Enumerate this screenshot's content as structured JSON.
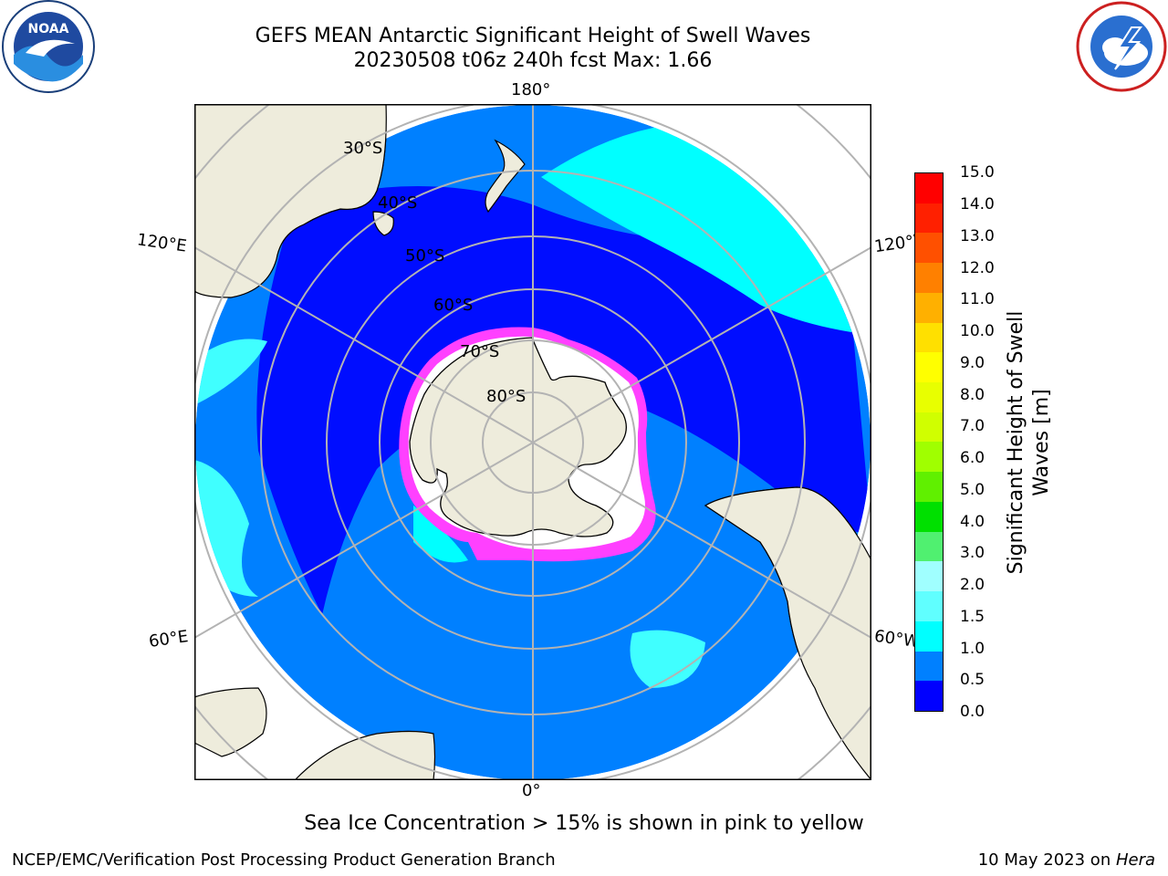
{
  "header": {
    "title_line1": "GEFS MEAN Antarctic Significant Height of Swell Waves",
    "title_line2": "20230508 t06z 240h fcst   Max: 1.66"
  },
  "logos": {
    "left": {
      "icon": "noaa-logo-icon",
      "text": "NOAA",
      "ring_text": "NATIONAL OCEANIC AND ATMOSPHERIC ADMINISTRATION · U.S. DEPARTMENT OF COMMERCE"
    },
    "right": {
      "icon": "nws-logo-icon",
      "ring_text": "NATIONAL WEATHER SERVICE"
    }
  },
  "map": {
    "projection": "south-polar-stereographic",
    "longitude_labels": {
      "top": "180°",
      "bottom": "0°",
      "upper_left": "120°E",
      "upper_right": "120°W",
      "lower_left": "60°E",
      "lower_right": "60°W"
    },
    "latitude_labels": [
      "30°S",
      "40°S",
      "50°S",
      "60°S",
      "70°S",
      "80°S"
    ],
    "colors": {
      "land": "#eeecdc",
      "ocean_0_0_5": "#0000ff",
      "ocean_0_5_1_0": "#0080ff",
      "ocean_1_0_1_5": "#00ffff",
      "ocean_1_5_2_0": "#40ffff",
      "ice_edge": "#ff40ff",
      "ice": "#ffffff",
      "grid": "#b3b3b3"
    }
  },
  "colorbar": {
    "label_line1": "Significant Height of Swell",
    "label_line2": "Waves [m]",
    "ticks": [
      "15.0",
      "14.0",
      "13.0",
      "12.0",
      "11.0",
      "10.0",
      "9.0",
      "8.0",
      "7.0",
      "6.0",
      "5.0",
      "4.0",
      "3.0",
      "2.0",
      "1.5",
      "1.0",
      "0.5",
      "0.0"
    ],
    "colors": [
      "#ff0000",
      "#ff2000",
      "#ff5000",
      "#ff8000",
      "#ffb000",
      "#ffe000",
      "#ffff00",
      "#e8ff00",
      "#d0ff00",
      "#a0ff00",
      "#60f000",
      "#00e000",
      "#50f070",
      "#a0ffff",
      "#60ffff",
      "#00ffff",
      "#0080ff",
      "#0000ff"
    ]
  },
  "notes": {
    "sea_ice": "Sea Ice Concentration > 15% is shown in pink to yellow"
  },
  "footer": {
    "left": "NCEP/EMC/Verification Post Processing Product Generation Branch",
    "right_prefix": "10 May 2023 on ",
    "right_host": "Hera"
  }
}
